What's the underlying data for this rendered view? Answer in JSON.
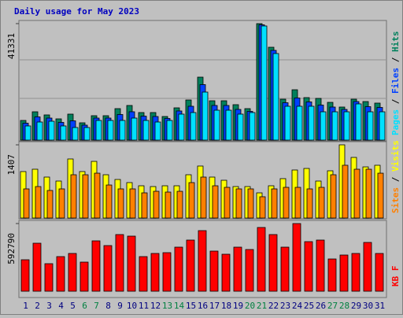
{
  "chart_data": [
    {
      "type": "bar",
      "title": "Daily usage for May 2023",
      "title_color": "#0000c0",
      "legend_separator": " / ",
      "ylim": [
        0,
        41331
      ],
      "yticks": [
        41331
      ],
      "series": [
        {
          "name": "Hits",
          "color": "#00805c",
          "values": [
            6980,
            10050,
            8940,
            7540,
            9220,
            6140,
            8660,
            8660,
            11170,
            12290,
            9780,
            9780,
            8380,
            11450,
            14240,
            22340,
            13960,
            13960,
            12570,
            11170,
            41331,
            32950,
            14520,
            17870,
            15080,
            14800,
            13400,
            11730,
            14520,
            13680,
            13130
          ]
        },
        {
          "name": "Files",
          "color": "#0040ff",
          "values": [
            6000,
            8240,
            7820,
            6290,
            6840,
            5310,
            7820,
            7820,
            9080,
            10060,
            8500,
            8380,
            7680,
            10340,
            12010,
            19690,
            12290,
            12290,
            10890,
            10200,
            40900,
            31840,
            13260,
            14940,
            13550,
            12430,
            11730,
            10890,
            13680,
            11870,
            11590
          ]
        },
        {
          "name": "Pages",
          "color": "#00e0ff",
          "values": [
            5030,
            6420,
            6700,
            5030,
            4470,
            4470,
            6980,
            6980,
            6980,
            7820,
            6980,
            6420,
            6980,
            9220,
            9780,
            17040,
            10610,
            10610,
            9220,
            9780,
            40500,
            30720,
            12010,
            12010,
            12010,
            10050,
            10050,
            10050,
            12850,
            10050,
            10050
          ]
        }
      ]
    },
    {
      "type": "bar",
      "ylim": [
        0,
        1407
      ],
      "yticks": [
        1407
      ],
      "series": [
        {
          "name": "Visits",
          "color": "#ffff00",
          "values": [
            893,
            938,
            787,
            711,
            1135,
            893,
            1089,
            832,
            741,
            681,
            620,
            605,
            620,
            620,
            832,
            999,
            787,
            726,
            605,
            605,
            484,
            620,
            757,
            923,
            953,
            711,
            908,
            1407,
            1165,
            983,
            1014
          ]
        },
        {
          "name": "Sites",
          "color": "#ff8000",
          "values": [
            560,
            605,
            530,
            560,
            832,
            832,
            862,
            635,
            560,
            560,
            484,
            514,
            499,
            514,
            681,
            787,
            620,
            590,
            560,
            560,
            409,
            560,
            590,
            590,
            560,
            590,
            832,
            1014,
            938,
            938,
            862
          ]
        }
      ]
    },
    {
      "type": "bar",
      "ylim": [
        0,
        592790
      ],
      "yticks": [
        592790
      ],
      "categories": [
        "1",
        "2",
        "3",
        "4",
        "5",
        "6",
        "7",
        "8",
        "9",
        "10",
        "11",
        "12",
        "13",
        "14",
        "15",
        "16",
        "17",
        "18",
        "19",
        "20",
        "21",
        "22",
        "23",
        "24",
        "25",
        "26",
        "27",
        "28",
        "29",
        "30",
        "31"
      ],
      "category_colors": [
        "#000080",
        "#000080",
        "#000080",
        "#000080",
        "#000080",
        "#008040",
        "#008040",
        "#000080",
        "#000080",
        "#000080",
        "#000080",
        "#000080",
        "#008040",
        "#008040",
        "#000080",
        "#000080",
        "#000080",
        "#000080",
        "#000080",
        "#008040",
        "#008040",
        "#000080",
        "#000080",
        "#000080",
        "#000080",
        "#000080",
        "#008040",
        "#008040",
        "#000080",
        "#000080",
        "#000080"
      ],
      "series": [
        {
          "name": "KB F",
          "color": "#ff0000",
          "values": [
            275720,
            420470,
            241260,
            303290,
            330860,
            255040,
            441150,
            399790,
            496300,
            482510,
            303290,
            330860,
            337760,
            386010,
            448050,
            530760,
            351540,
            323970,
            386010,
            365330,
            558330,
            496300,
            386010,
            592790,
            434260,
            448050,
            282610,
            317080,
            330860,
            427370,
            330860
          ]
        }
      ]
    }
  ]
}
